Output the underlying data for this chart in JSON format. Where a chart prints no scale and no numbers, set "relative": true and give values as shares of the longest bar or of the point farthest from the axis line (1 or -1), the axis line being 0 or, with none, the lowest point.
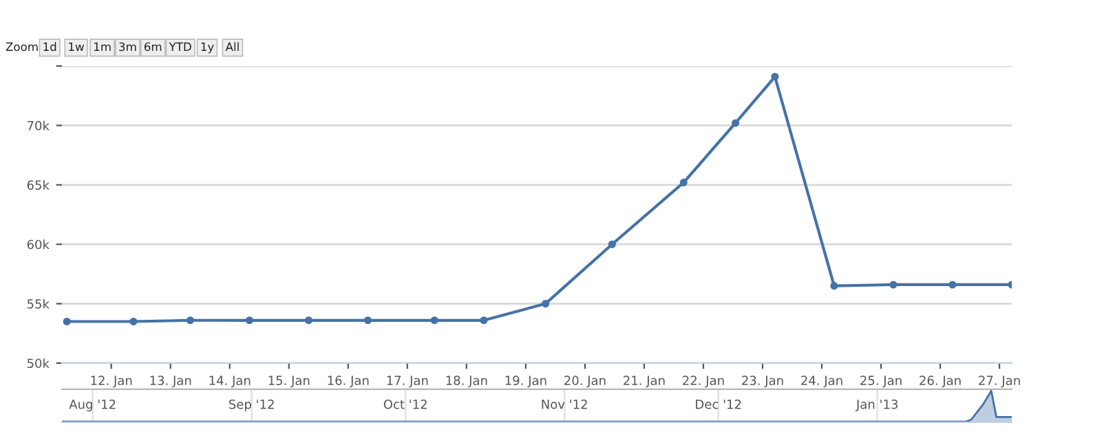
{
  "chart_data": [
    {
      "type": "line",
      "annotations": [
        "Zoom",
        "1d",
        "1w",
        "1m",
        "3m",
        "6m",
        "YTD",
        "1y",
        "All"
      ],
      "x": [
        "2013-01-11T06:00",
        "2013-01-12T09:00",
        "2013-01-13T08:00",
        "2013-01-14T08:00",
        "2013-01-15T08:00",
        "2013-01-16T08:00",
        "2013-01-17T11:00",
        "2013-01-18T07:00",
        "2013-01-19T08:00",
        "2013-01-20T11:00",
        "2013-01-21T16:00",
        "2013-01-22T13:00",
        "2013-01-23T05:00",
        "2013-01-24T05:00",
        "2013-01-25T05:00",
        "2013-01-26T05:00",
        "2013-01-27T05:00"
      ],
      "series": [
        {
          "color": "#4572a7",
          "values": [
            53500,
            53500,
            53600,
            53600,
            53600,
            53600,
            53600,
            53600,
            55000,
            60000,
            65200,
            70200,
            74100,
            56500,
            56600,
            56600,
            56600
          ]
        }
      ],
      "xlim": [
        "2013-01-11T04:00",
        "2013-01-27T05:00"
      ],
      "ylim": [
        50000,
        75000
      ],
      "xticks": [
        {
          "value": "2013-01-12",
          "label": "12. Jan"
        },
        {
          "value": "2013-01-13",
          "label": "13. Jan"
        },
        {
          "value": "2013-01-14",
          "label": "14. Jan"
        },
        {
          "value": "2013-01-15",
          "label": "15. Jan"
        },
        {
          "value": "2013-01-16",
          "label": "16. Jan"
        },
        {
          "value": "2013-01-17",
          "label": "17. Jan"
        },
        {
          "value": "2013-01-18",
          "label": "18. Jan"
        },
        {
          "value": "2013-01-19",
          "label": "19. Jan"
        },
        {
          "value": "2013-01-20",
          "label": "20. Jan"
        },
        {
          "value": "2013-01-21",
          "label": "21. Jan"
        },
        {
          "value": "2013-01-22",
          "label": "22. Jan"
        },
        {
          "value": "2013-01-23",
          "label": "23. Jan"
        },
        {
          "value": "2013-01-24",
          "label": "24. Jan"
        },
        {
          "value": "2013-01-25",
          "label": "25. Jan"
        },
        {
          "value": "2013-01-26",
          "label": "26. Jan"
        },
        {
          "value": "2013-01-27",
          "label": "27. Jan"
        }
      ],
      "yticks": [
        {
          "value": 50000,
          "label": "50k"
        },
        {
          "value": 55000,
          "label": "55k"
        },
        {
          "value": 60000,
          "label": "60k"
        },
        {
          "value": 65000,
          "label": "65k"
        },
        {
          "value": 70000,
          "label": "70k"
        },
        {
          "value": 75000,
          "label": null
        }
      ],
      "grid": "y",
      "marker": "circle",
      "line_style": "solid"
    },
    {
      "type": "area",
      "relative": true,
      "x": [
        "2012-07-26",
        "2012-09-01",
        "2012-10-01",
        "2012-11-01",
        "2012-12-01",
        "2013-01-01",
        "2013-01-11T06:00",
        "2013-01-18T07:00",
        "2013-01-19T08:00",
        "2013-01-20T11:00",
        "2013-01-21T16:00",
        "2013-01-22T13:00",
        "2013-01-23T05:00",
        "2013-01-24T05:00",
        "2013-01-27T05:00"
      ],
      "series": [
        {
          "color": "#4572a7",
          "values": [
            0,
            0,
            0,
            0,
            0,
            0,
            0,
            0,
            0.07,
            0.31,
            0.57,
            0.81,
            1,
            0.15,
            0.15
          ]
        }
      ],
      "xlim": [
        "2012-07-26",
        "2013-01-27T05:00"
      ],
      "xticks": [
        {
          "value": "2012-08-01",
          "label": "Aug '12"
        },
        {
          "value": "2012-09-01",
          "label": "Sep '12"
        },
        {
          "value": "2012-10-01",
          "label": "Oct '12"
        },
        {
          "value": "2012-11-01",
          "label": "Nov '12"
        },
        {
          "value": "2012-12-01",
          "label": "Dec '12"
        },
        {
          "value": "2013-01-01",
          "label": "Jan '13"
        }
      ],
      "grid": "x"
    }
  ]
}
